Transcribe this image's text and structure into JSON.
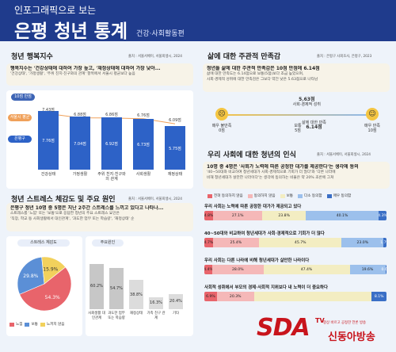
{
  "header": {
    "line1": "인포그래픽으로 보는",
    "title": "은평 청년 통계",
    "subtitle": "건강·사회활동편"
  },
  "happiness": {
    "title": "청년 행복지수",
    "source": "출처 : 서울서베이, 서울회생시, 2024",
    "headline": "행복지수는 '건강상태에 대하여 가장 높고, '재정상태에 대하여 가장 낮아...",
    "detail": "'건강상태', '가정생활', '주위 친지·친구와의 관계' 항목에서 서울시 평균보다 높음",
    "scale_label": "10점 만점",
    "legend_seoul": "서울시 평균",
    "legend_ep": "은평구",
    "categories": [
      "건강상태",
      "가정생활",
      "주위 친지·친구와의 관계",
      "사회생활",
      "재정상태"
    ],
    "eunpyeong": [
      7.76,
      7.04,
      6.92,
      6.73,
      5.75
    ],
    "eunpyeong_labels": [
      "7.76점",
      "7.04점",
      "6.92점",
      "6.73점",
      "5.75점"
    ],
    "seoul": [
      7.43,
      6.88,
      6.86,
      6.76,
      6.09
    ],
    "seoul_labels": [
      "7.43점",
      "6.88점",
      "6.86점",
      "6.76점",
      "6.09점"
    ]
  },
  "satisfaction": {
    "title": "삶에 대한 주관적 만족감",
    "source": "출처 : 은평구 사회조사, 은평구, 2023",
    "headline": "청년들 삶에 대한 주관적 만족감은 10점 만점에 6.14점",
    "detail1": "삶에 대한 만족도는 6.14점으로 보통(5점)보다 조금 높았으며,",
    "detail2": "사회·경제적 성취에 대한 만족감은 그보다 약간 낮은 5.63점으로 나타남",
    "left_label": "매우 불만족",
    "left_value": "0점",
    "mid_label": "보통",
    "mid_value": "5점",
    "right_label": "매우 만족",
    "right_value": "10점",
    "econ_value": "5.63점",
    "econ_label": "사회·경제적 성취",
    "life_label": "삶에 대한 만족",
    "life_value": "6.14점",
    "life_score": 6.14,
    "econ_score": 5.63
  },
  "stress": {
    "title": "청년 스트레스 체감도 및 주요 원인",
    "source": "출처 : 서울서베이, 서울회생시, 2024",
    "headline": "은평구 청년 10명 중 5명은 지난 2주간 스트레스를 느끼고 있다고 나타나...",
    "detail1": "스트레스를 '느낌' 또는 '보통'으로 응답한 청년의 주요 스트레스 요인은",
    "detail2": "'직장, 학교 등 사회생활에서 대인관계', '과도한 업무 또는 학습량', '재정상태' 순",
    "pie_title": "스트레스 체감도",
    "pie_values": [
      54.3,
      29.8,
      15.9
    ],
    "pie_labels": [
      "54.3%",
      "29.8%",
      "15.9%"
    ],
    "pie_colors": [
      "#e8646b",
      "#5b8fd6",
      "#f2d15c"
    ],
    "pie_legend": [
      "느낌",
      "보통",
      "느끼지 않음"
    ],
    "cause_title": "주요원인",
    "causes": [
      "사회생활 대인관계",
      "과도한 업무 또는 학습량",
      "재정상태",
      "가족 친구 관계",
      "기타"
    ],
    "cause_values": [
      60.2,
      54.7,
      38.8,
      16.3,
      20.4
    ],
    "cause_labels": [
      "60.2%",
      "54.7%",
      "38.8%",
      "16.3%",
      "20.4%"
    ]
  },
  "society": {
    "title": "우리 사회에 대한 청년의 인식",
    "source": "출처 : 서울서베이, 서울회생시, 2024",
    "headline": "10명 중 4명은 '사회가 노력에 따른 공정한 대가를 제공한다'는 생각에 동의",
    "detail1": "'40~50대와 비교하여 청년세대가 사회·경제적으로 기회가 더 많다'와 '다른 나라에",
    "detail2": "비해 청년세대가 살만한 나라이다'는 생각에 동의하는 비율은 약 20% 초반에 그쳐",
    "legend": [
      "전혀 동의하지 않음",
      "동의하지 않음",
      "보통",
      "다소 동의함",
      "매우 동의함"
    ],
    "colors": [
      "#e8646b",
      "#f5b8b8",
      "#f3edc2",
      "#9cc0ec",
      "#3a6fc6"
    ],
    "questions": [
      {
        "q": "우리 사회는 노력에 따른 공정한 대가가 제공되고 있다",
        "values": [
          4.8,
          27.1,
          23.8,
          40.1,
          4.3
        ],
        "labels": [
          "4.8%",
          "27.1%",
          "23.8%",
          "40.1%",
          "4.3%"
        ]
      },
      {
        "q": "40~50대와 비교하여 청년세대가 사회·경제적으로 기회가 더 많다",
        "values": [
          4.7,
          25.4,
          45.7,
          23.0,
          1.7
        ],
        "labels": [
          "4.7%",
          "25.4%",
          "45.7%",
          "23.0%",
          "1.7%"
        ]
      },
      {
        "q": "우리 사회는 다른 나라에 비해 청년세대가 살만한 나라이다",
        "values": [
          4.4,
          28.0,
          47.4,
          19.6,
          0.6
        ],
        "labels": [
          "4.4%",
          "28.0%",
          "47.4%",
          "19.6%",
          "0.6%"
        ]
      },
      {
        "q": "사회적 성취에서 부모의 경제·사회적 지위보다 내 노력이 더 중요하다",
        "values": [
          6.9,
          20.3,
          0,
          0,
          8.1
        ],
        "labels": [
          "6.9%",
          "20.3%",
          "",
          "",
          "8.1%"
        ]
      }
    ]
  },
  "watermark": {
    "brand": "SDA",
    "tv": "TV",
    "name": "신동아방송",
    "sub": "항상 바르고 공정한 언론 방송"
  }
}
